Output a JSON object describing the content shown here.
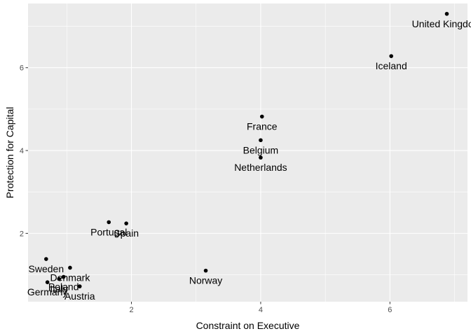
{
  "chart_data": {
    "type": "scatter",
    "title": "",
    "xlabel": "Constraint on Executive",
    "ylabel": "Protection for Capital",
    "xlim": [
      0.4,
      7.2
    ],
    "ylim": [
      0.35,
      7.55
    ],
    "x_ticks": [
      2,
      4,
      6
    ],
    "y_ticks": [
      2,
      4,
      6
    ],
    "grid": true,
    "legend": "none",
    "colors": {
      "panel_background": "#ebebeb",
      "grid_major": "#ffffff",
      "point": "#000000",
      "tick_text": "#4d4d4d"
    },
    "points": [
      {
        "label": "United Kingdom",
        "x": 6.88,
        "y": 7.3
      },
      {
        "label": "Iceland",
        "x": 6.02,
        "y": 6.28
      },
      {
        "label": "France",
        "x": 4.02,
        "y": 4.82
      },
      {
        "label": "Belgium",
        "x": 4.0,
        "y": 4.25
      },
      {
        "label": "Netherlands",
        "x": 4.0,
        "y": 3.83
      },
      {
        "label": "Spain",
        "x": 1.92,
        "y": 2.24
      },
      {
        "label": "Portugal",
        "x": 1.65,
        "y": 2.27
      },
      {
        "label": "Norway",
        "x": 3.15,
        "y": 1.1
      },
      {
        "label": "Denmark",
        "x": 1.05,
        "y": 1.17
      },
      {
        "label": "Sweden",
        "x": 0.68,
        "y": 1.38
      },
      {
        "label": "Germany",
        "x": 0.7,
        "y": 0.82
      },
      {
        "label": "Italy",
        "x": 0.88,
        "y": 0.9
      },
      {
        "label": "Poland",
        "x": 0.95,
        "y": 0.95
      },
      {
        "label": "Austria",
        "x": 1.2,
        "y": 0.72
      }
    ]
  }
}
